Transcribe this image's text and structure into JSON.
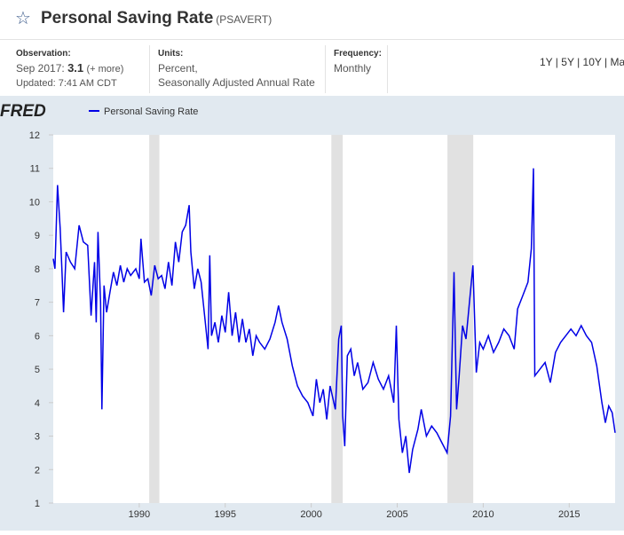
{
  "header": {
    "title": "Personal Saving Rate",
    "series_id": "(PSAVERT)"
  },
  "info": {
    "observation_label": "Observation:",
    "observation_date": "Sep 2017:",
    "observation_value": "3.1",
    "more": "(+ more)",
    "updated": "Updated: 7:41 AM CDT",
    "units_label": "Units:",
    "units_line1": "Percent,",
    "units_line2": "Seasonally Adjusted Annual Rate",
    "frequency_label": "Frequency:",
    "frequency": "Monthly",
    "ranges": [
      "1Y",
      "5Y",
      "10Y",
      "Ma"
    ]
  },
  "chart_data": {
    "type": "line",
    "logo": "FRED",
    "x": [
      1985.0,
      1985.1,
      1985.25,
      1985.4,
      1985.5,
      1985.6,
      1985.75,
      1986.0,
      1986.25,
      1986.5,
      1986.75,
      1987.0,
      1987.2,
      1987.4,
      1987.5,
      1987.6,
      1987.75,
      1987.83,
      1987.95,
      1988.1,
      1988.3,
      1988.5,
      1988.7,
      1988.9,
      1989.1,
      1989.3,
      1989.5,
      1989.8,
      1990.0,
      1990.1,
      1990.3,
      1990.5,
      1990.7,
      1990.9,
      1991.1,
      1991.3,
      1991.5,
      1991.7,
      1991.9,
      1992.1,
      1992.3,
      1992.5,
      1992.7,
      1992.9,
      1993.0,
      1993.2,
      1993.4,
      1993.6,
      1993.8,
      1994.0,
      1994.1,
      1994.2,
      1994.4,
      1994.6,
      1994.8,
      1995.0,
      1995.2,
      1995.4,
      1995.6,
      1995.8,
      1996.0,
      1996.2,
      1996.4,
      1996.6,
      1996.8,
      1997.0,
      1997.3,
      1997.6,
      1997.9,
      1998.1,
      1998.3,
      1998.6,
      1998.9,
      1999.2,
      1999.5,
      1999.8,
      2000.1,
      2000.3,
      2000.5,
      2000.7,
      2000.9,
      2001.1,
      2001.4,
      2001.6,
      2001.75,
      2001.83,
      2001.95,
      2002.1,
      2002.3,
      2002.5,
      2002.7,
      2003.0,
      2003.3,
      2003.6,
      2003.9,
      2004.2,
      2004.5,
      2004.8,
      2004.95,
      2005.1,
      2005.3,
      2005.5,
      2005.7,
      2005.9,
      2006.2,
      2006.4,
      2006.7,
      2007.0,
      2007.3,
      2007.6,
      2007.9,
      2008.1,
      2008.3,
      2008.45,
      2008.6,
      2008.8,
      2009.0,
      2009.4,
      2009.6,
      2009.8,
      2010.0,
      2010.3,
      2010.6,
      2010.9,
      2011.2,
      2011.5,
      2011.8,
      2012.0,
      2012.3,
      2012.6,
      2012.8,
      2012.92,
      2013.0,
      2013.3,
      2013.6,
      2013.9,
      2014.2,
      2014.5,
      2014.8,
      2015.1,
      2015.4,
      2015.7,
      2016.0,
      2016.3,
      2016.6,
      2016.9,
      2017.1,
      2017.3,
      2017.5,
      2017.67
    ],
    "series": [
      {
        "name": "Personal Saving Rate",
        "color": "#0000e6",
        "values": [
          8.3,
          8.0,
          10.5,
          9.2,
          8.0,
          6.7,
          8.5,
          8.2,
          8.0,
          9.3,
          8.8,
          8.7,
          6.6,
          8.2,
          6.4,
          9.1,
          7.0,
          3.8,
          7.5,
          6.7,
          7.3,
          7.9,
          7.5,
          8.1,
          7.6,
          8.0,
          7.8,
          8.0,
          7.7,
          8.9,
          7.6,
          7.7,
          7.2,
          8.1,
          7.7,
          7.8,
          7.4,
          8.2,
          7.5,
          8.8,
          8.2,
          9.1,
          9.3,
          9.9,
          8.5,
          7.4,
          8.0,
          7.6,
          6.6,
          5.6,
          8.4,
          6.0,
          6.4,
          5.8,
          6.6,
          6.1,
          7.3,
          6.0,
          6.7,
          5.8,
          6.5,
          5.8,
          6.2,
          5.4,
          6.0,
          5.8,
          5.6,
          5.9,
          6.4,
          6.9,
          6.4,
          5.9,
          5.1,
          4.5,
          4.2,
          4.0,
          3.6,
          4.7,
          4.0,
          4.4,
          3.5,
          4.5,
          3.8,
          5.9,
          6.3,
          3.6,
          2.7,
          5.4,
          5.6,
          4.8,
          5.2,
          4.4,
          4.6,
          5.2,
          4.7,
          4.4,
          4.8,
          4.0,
          6.3,
          3.5,
          2.5,
          3.0,
          1.9,
          2.6,
          3.2,
          3.8,
          3.0,
          3.3,
          3.1,
          2.8,
          2.5,
          3.6,
          7.9,
          3.8,
          4.8,
          6.3,
          5.9,
          8.1,
          4.9,
          5.8,
          5.6,
          6.0,
          5.5,
          5.8,
          6.2,
          6.0,
          5.6,
          6.8,
          7.2,
          7.6,
          8.6,
          11.0,
          4.8,
          5.0,
          5.2,
          4.6,
          5.5,
          5.8,
          6.0,
          6.2,
          6.0,
          6.3,
          6.0,
          5.8,
          5.1,
          4.0,
          3.4,
          3.9,
          3.7,
          3.1
        ]
      }
    ],
    "xlim": [
      1985.0,
      2017.67
    ],
    "ylim": [
      1,
      12
    ],
    "xticks": [
      1990,
      1995,
      2000,
      2005,
      2010,
      2015
    ],
    "yticks": [
      1,
      2,
      3,
      4,
      5,
      6,
      7,
      8,
      9,
      10,
      11,
      12
    ],
    "recessions": [
      [
        1990.58,
        1991.17
      ],
      [
        2001.17,
        2001.83
      ],
      [
        2007.92,
        2009.42
      ]
    ],
    "recession_color": "#e1e1e1",
    "grid": false
  }
}
